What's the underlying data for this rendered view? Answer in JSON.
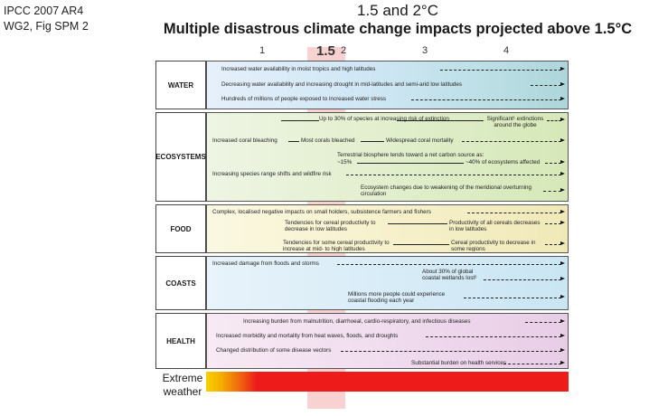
{
  "source": {
    "line1": "IPCC 2007 AR4",
    "line2": "WG2,  Fig SPM 2"
  },
  "header": {
    "subtitle": "1.5 and 2°C",
    "title": "Multiple disastrous climate change impacts projected above 1.5°C"
  },
  "axis": {
    "ticks": [
      "1",
      "1.5",
      "2",
      "3",
      "4"
    ]
  },
  "panels": [
    {
      "name": "WATER",
      "items": [
        "Increased water availability in moist tropics and high latitudes",
        "Decreasing water availability and increasing drought in mid-latitudes and semi-arid low latitudes",
        "Hundreds of millions of people exposed to increased water stress"
      ]
    },
    {
      "name": "ECOSYSTEMS",
      "items": [
        "Up to 30% of species at increasing risk of extinction",
        "Significant¹ extinctions around the globe",
        "Increased coral bleaching",
        "Most corals bleached",
        "Widespread coral mortality",
        "Terrestrial biosphere tends toward a net carbon source as:",
        "~15%",
        "~40% of ecosystems affected",
        "Increasing species range shifts and wildfire risk",
        "Ecosystem changes due to weakening of the meridional overturning circulation"
      ]
    },
    {
      "name": "FOOD",
      "items": [
        "Complex, localised negative impacts on small holders, subsistence farmers and fishers",
        "Tendencies for cereal productivity to decrease in low latitudes",
        "Productivity of all cereals decreases in low latitudes",
        "Tendencies for some cereal productivity to increase at mid- to high latitudes",
        "Cereal productivity to decrease in some regions"
      ]
    },
    {
      "name": "COASTS",
      "items": [
        "Increased damage from floods and storms",
        "About 30% of global coastal wetlands lost²",
        "Millions more people could experience coastal flooding each year"
      ]
    },
    {
      "name": "HEALTH",
      "items": [
        "Increasing burden from malnutrition, diarrhoeal, cardio-respiratory, and infectious diseases",
        "Increased morbidity and mortality from heat waves, floods, and droughts",
        "Changed distribution of some disease vectors",
        "Substantial burden on health services"
      ]
    }
  ],
  "extreme": {
    "line1": "Extreme",
    "line2": "weather"
  },
  "colors": {
    "band": "#e65a5a",
    "extreme_start": "#f6d000",
    "extreme_end": "#ee1b1b"
  }
}
